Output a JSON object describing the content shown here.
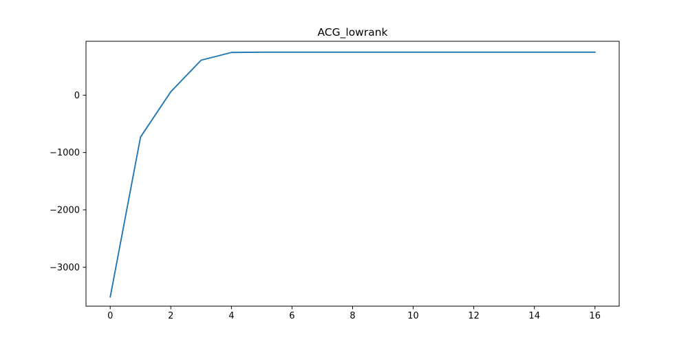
{
  "chart_data": {
    "type": "line",
    "title": "ACG_lowrank",
    "xlabel": "",
    "ylabel": "",
    "xlim": [
      -0.8,
      16.8
    ],
    "ylim": [
      -3680,
      940
    ],
    "xticks": [
      0,
      2,
      4,
      6,
      8,
      10,
      12,
      14,
      16
    ],
    "xtick_labels": [
      "0",
      "2",
      "4",
      "6",
      "8",
      "10",
      "12",
      "14",
      "16"
    ],
    "yticks": [
      0,
      -1000,
      -2000,
      -3000
    ],
    "ytick_labels": [
      "0",
      "−1000",
      "−2000",
      "−3000"
    ],
    "grid": false,
    "series": [
      {
        "color": "#1f77b4",
        "x": [
          0,
          1,
          2,
          3,
          4,
          5,
          6,
          7,
          8,
          9,
          10,
          11,
          12,
          13,
          14,
          15,
          16
        ],
        "y": [
          -3520,
          -730,
          60,
          610,
          745,
          750,
          750,
          750,
          750,
          750,
          750,
          750,
          750,
          750,
          750,
          750,
          750
        ]
      }
    ]
  }
}
